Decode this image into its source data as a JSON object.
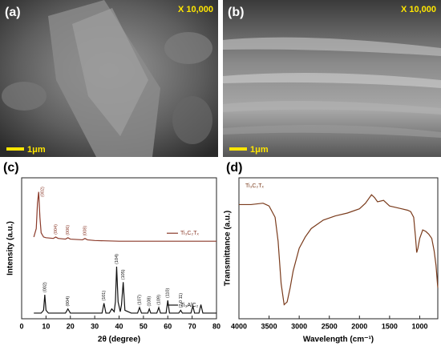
{
  "panels": [
    {
      "label": "(a)",
      "magnification": "X 10,000",
      "scale_bar": "1μm"
    },
    {
      "label": "(b)",
      "magnification": "X 10,000",
      "scale_bar": "1μm"
    }
  ],
  "chart_data": [
    {
      "type": "line",
      "panel_label": "(c)",
      "x_label": "2θ (degree)",
      "y_label": "Intensity (a.u.)",
      "xlim": [
        0,
        80
      ],
      "xticks": [
        0,
        10,
        20,
        30,
        40,
        50,
        60,
        70,
        80
      ],
      "ylim": [
        0,
        100
      ],
      "legend": "inline",
      "series": [
        {
          "name": "Ti₃C₂Tₓ",
          "color": "#8b3a2a",
          "x": [
            5,
            6,
            6.5,
            7,
            7.5,
            8,
            9,
            10,
            13,
            14,
            15,
            18,
            19,
            20,
            25,
            26,
            27,
            30,
            40,
            50,
            60,
            70,
            80
          ],
          "values": [
            58,
            64,
            82,
            90,
            72,
            61,
            58,
            57.5,
            57,
            58,
            57,
            56.5,
            57.5,
            56.5,
            56,
            57,
            56,
            55.5,
            55,
            55,
            55,
            55,
            55
          ],
          "peak_labels": [
            {
              "text": "(002)",
              "x": 7
            },
            {
              "text": "(004)",
              "x": 14
            },
            {
              "text": "(006)",
              "x": 19
            },
            {
              "text": "(008)",
              "x": 26
            }
          ]
        },
        {
          "name": "Ti₃AlC₂",
          "color": "#111111",
          "x": [
            5,
            8,
            9,
            9.5,
            10,
            11,
            18,
            19,
            20,
            30,
            33,
            33.8,
            34.6,
            36,
            37,
            38,
            38.5,
            39,
            39.6,
            40.5,
            41,
            41.7,
            42.4,
            45,
            47.6,
            48.4,
            49.2,
            51.8,
            52.4,
            53,
            55.5,
            56.3,
            57,
            59.3,
            60,
            60.7,
            64.5,
            65.3,
            66,
            69.5,
            70.3,
            71,
            72.8,
            73.6,
            74.4,
            80
          ],
          "values": [
            4,
            4,
            6,
            17,
            6,
            4,
            4,
            7,
            4,
            4,
            4,
            11,
            4,
            4,
            7,
            5,
            12,
            37,
            12,
            5,
            10,
            26,
            6,
            4,
            4,
            8,
            4,
            4,
            7,
            4,
            4,
            8,
            4,
            4,
            13,
            4,
            4,
            6,
            4,
            4,
            9,
            4,
            4,
            10,
            4,
            4
          ],
          "peak_labels": [
            {
              "text": "(002)",
              "x": 9.5
            },
            {
              "text": "(004)",
              "x": 19
            },
            {
              "text": "(101)",
              "x": 33.8
            },
            {
              "text": "(104)",
              "x": 39
            },
            {
              "text": "(105)",
              "x": 41.7
            },
            {
              "text": "(107)",
              "x": 48.4
            },
            {
              "text": "(108)",
              "x": 52.4
            },
            {
              "text": "(109)",
              "x": 56.3
            },
            {
              "text": "(110)",
              "x": 60
            },
            {
              "text": "(2 0 11)",
              "x": 65.3
            }
          ]
        }
      ]
    },
    {
      "type": "line",
      "panel_label": "(d)",
      "x_label": "Wavelength (cm⁻¹)",
      "y_label": "Transmittance (a.u.)",
      "xlim": [
        4000,
        700
      ],
      "xticks": [
        4000,
        3500,
        3000,
        2500,
        2000,
        1500,
        1000
      ],
      "ylim": [
        0,
        100
      ],
      "legend": "upper left",
      "series": [
        {
          "name": "Ti₃C₂Tₓ",
          "color": "#7a3b1c",
          "x": [
            4000,
            3800,
            3600,
            3500,
            3400,
            3350,
            3300,
            3250,
            3200,
            3150,
            3100,
            3000,
            2900,
            2800,
            2600,
            2400,
            2200,
            2000,
            1900,
            1800,
            1750,
            1700,
            1600,
            1500,
            1400,
            1300,
            1200,
            1150,
            1100,
            1070,
            1050,
            1030,
            1000,
            950,
            900,
            850,
            800,
            760,
            730,
            700
          ],
          "values": [
            81,
            81,
            82,
            80,
            72,
            55,
            25,
            10,
            12,
            22,
            34,
            50,
            58,
            64,
            70,
            73,
            75,
            78,
            82,
            88,
            86,
            83,
            84,
            80,
            79,
            78,
            77,
            76,
            72,
            58,
            47,
            50,
            57,
            63,
            62,
            60,
            57,
            48,
            38,
            22
          ]
        }
      ]
    }
  ]
}
